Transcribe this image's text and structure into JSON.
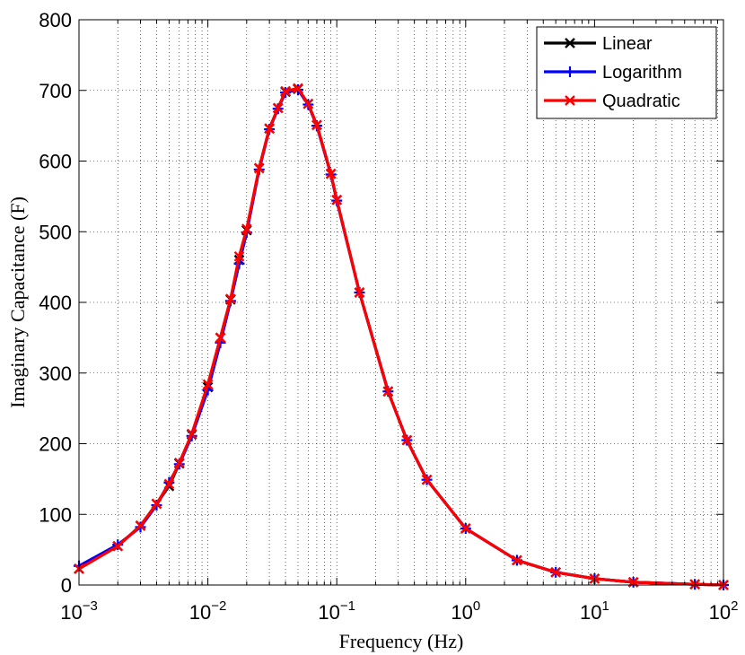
{
  "chart_data": {
    "type": "line",
    "xlabel": "Frequency (Hz)",
    "ylabel": "Imaginary Capacitance (F)",
    "xscale": "log",
    "xlim": [
      0.001,
      100
    ],
    "ylim": [
      0,
      800
    ],
    "grid": true,
    "legend_position": "top-right",
    "x_ticks": [
      {
        "base": "10",
        "exp": "−3",
        "value": 0.001
      },
      {
        "base": "10",
        "exp": "−2",
        "value": 0.01
      },
      {
        "base": "10",
        "exp": "−1",
        "value": 0.1
      },
      {
        "base": "10",
        "exp": "0",
        "value": 1
      },
      {
        "base": "10",
        "exp": "1",
        "value": 10
      },
      {
        "base": "10",
        "exp": "2",
        "value": 100
      }
    ],
    "y_ticks": [
      "0",
      "100",
      "200",
      "300",
      "400",
      "500",
      "600",
      "700",
      "800"
    ],
    "series": [
      {
        "name": "Linear",
        "color": "#000000",
        "marker": "x",
        "x": [
          0.001,
          0.002,
          0.003,
          0.004,
          0.005,
          0.006,
          0.0075,
          0.01,
          0.0125,
          0.015,
          0.0175,
          0.02,
          0.025,
          0.03,
          0.035,
          0.04,
          0.05,
          0.06,
          0.07,
          0.09,
          0.1,
          0.15,
          0.25,
          0.35,
          0.5,
          1,
          2.5,
          5,
          10,
          20,
          60,
          100
        ],
        "y": [
          23,
          55,
          84,
          115,
          140,
          172,
          213,
          280,
          350,
          404,
          460,
          502,
          590,
          646,
          675,
          698,
          702,
          681,
          651,
          582,
          545,
          414,
          274,
          205,
          149,
          80,
          35,
          18,
          9,
          4,
          1,
          0
        ]
      },
      {
        "name": "Logarithm",
        "color": "#0000ff",
        "marker": "+",
        "x": [
          0.001,
          0.002,
          0.003,
          0.004,
          0.005,
          0.006,
          0.0075,
          0.01,
          0.0125,
          0.015,
          0.0175,
          0.02,
          0.025,
          0.03,
          0.035,
          0.04,
          0.05,
          0.06,
          0.07,
          0.09,
          0.1,
          0.15,
          0.25,
          0.35,
          0.5,
          1,
          2.5,
          5,
          10,
          20,
          60,
          100
        ],
        "y": [
          27,
          57,
          82,
          113,
          145,
          171,
          211,
          276,
          343,
          402,
          455,
          499,
          588,
          645,
          674,
          697,
          701,
          680,
          650,
          581,
          544,
          414,
          274,
          205,
          149,
          80,
          35,
          18,
          9,
          4,
          1,
          0
        ]
      },
      {
        "name": "Quadratic",
        "color": "#ff0000",
        "marker": "x",
        "x": [
          0.001,
          0.002,
          0.003,
          0.004,
          0.005,
          0.006,
          0.0075,
          0.01,
          0.0125,
          0.015,
          0.0175,
          0.02,
          0.025,
          0.03,
          0.035,
          0.04,
          0.05,
          0.06,
          0.07,
          0.09,
          0.1,
          0.15,
          0.25,
          0.35,
          0.5,
          1,
          2.5,
          5,
          10,
          20,
          60,
          100
        ],
        "y": [
          23,
          55,
          84,
          115,
          143,
          173,
          214,
          284,
          350,
          405,
          465,
          504,
          590,
          646,
          675,
          699,
          703,
          681,
          651,
          582,
          545,
          414,
          274,
          205,
          149,
          80,
          35,
          18,
          9,
          4,
          1,
          0
        ]
      }
    ]
  }
}
